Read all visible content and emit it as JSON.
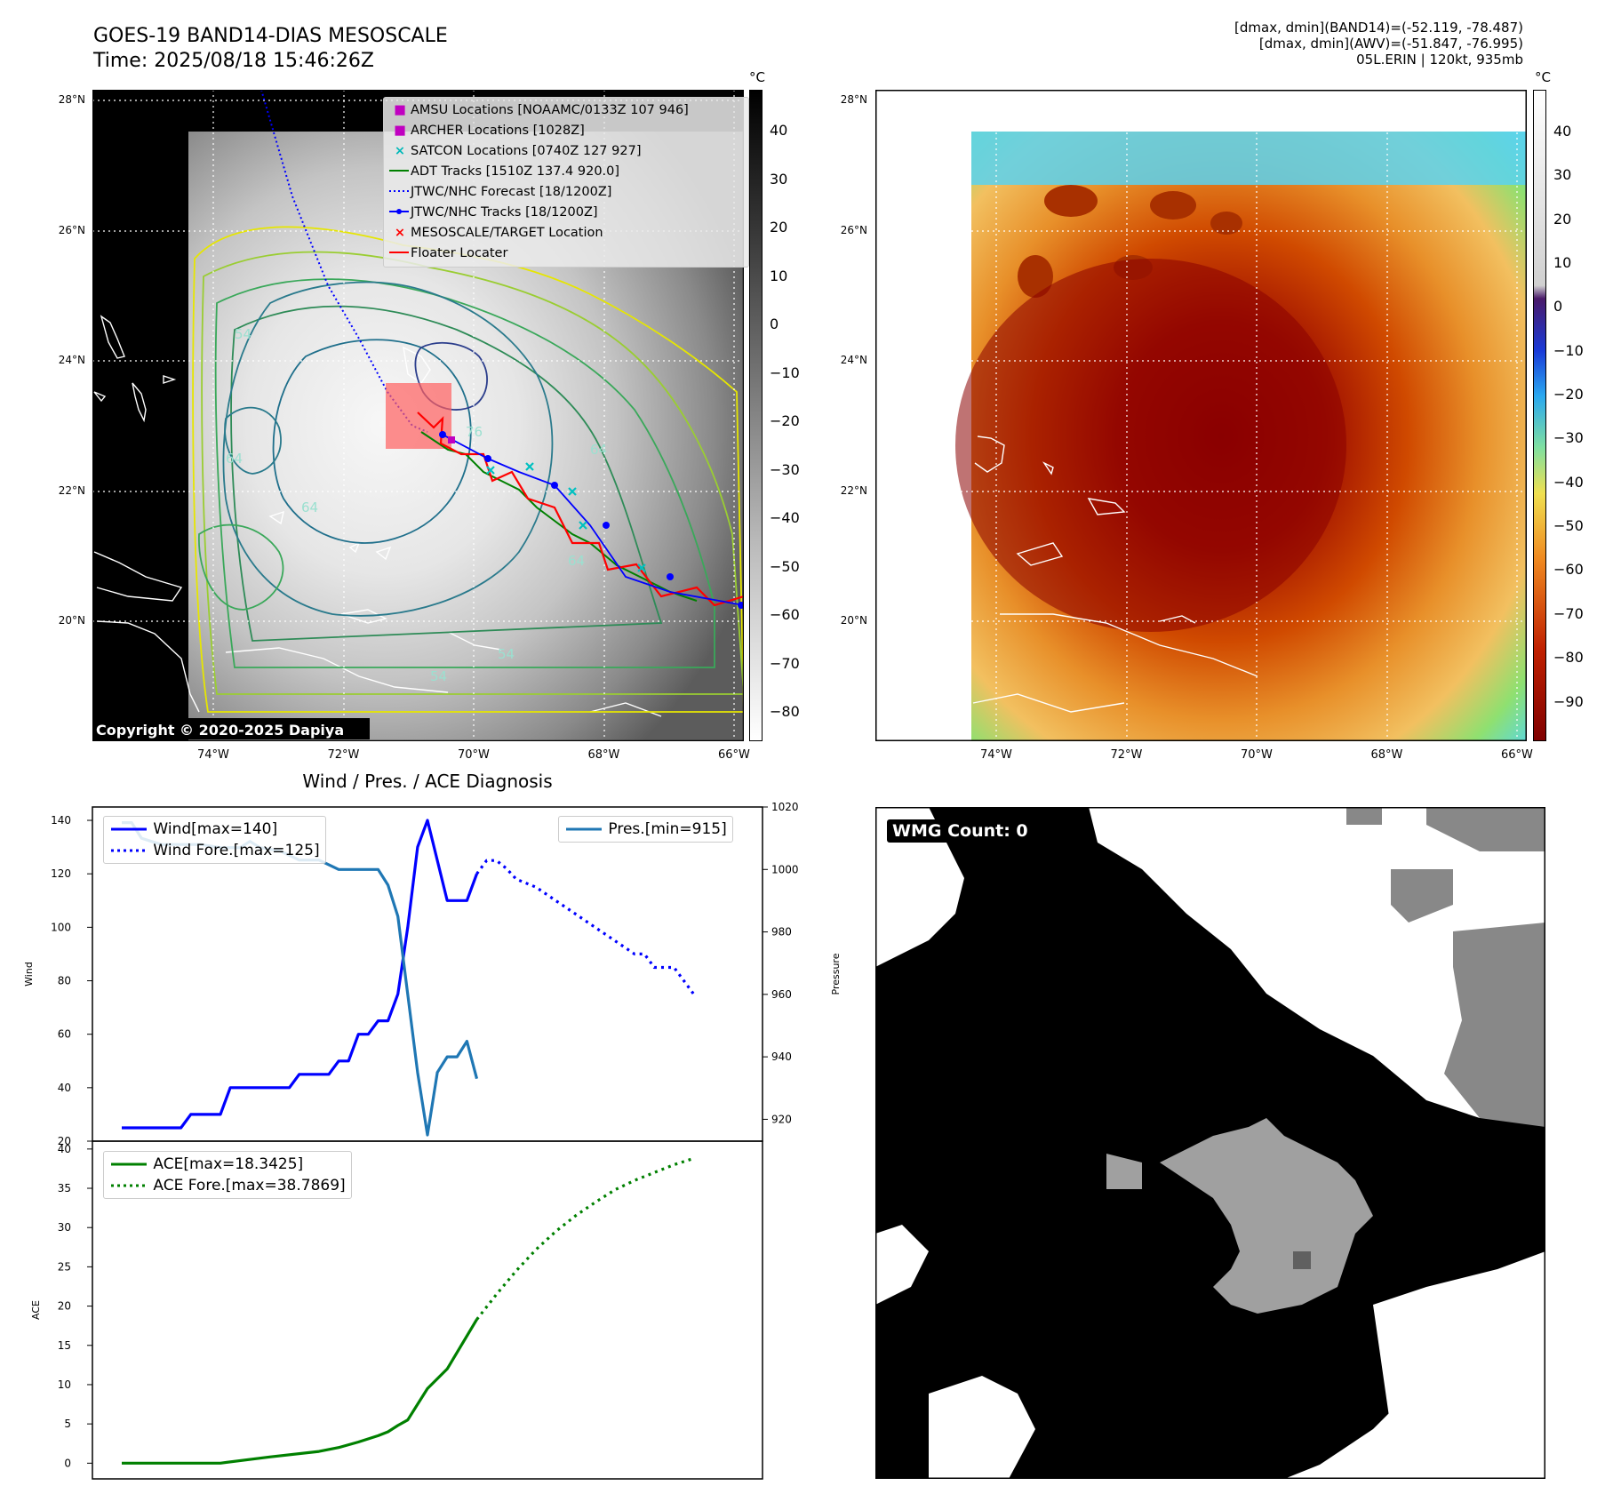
{
  "header": {
    "title": "GOES-19 BAND14-DIAS MESOSCALE",
    "time": "Time: 2025/08/18 15:46:26Z",
    "stats_band14": "[dmax, dmin](BAND14)=(-52.119, -78.487)",
    "stats_awv": "[dmax, dmin](AWV)=(-51.847, -76.995)",
    "storm": "05L.ERIN | 120kt, 935mb"
  },
  "map": {
    "lat_labels": [
      "28°N",
      "26°N",
      "24°N",
      "22°N",
      "20°N"
    ],
    "lat_values": [
      28,
      26,
      24,
      22,
      20
    ],
    "lon_labels": [
      "74°W",
      "72°W",
      "70°W",
      "68°W",
      "66°W"
    ],
    "lon_values": [
      -74,
      -72,
      -70,
      -68,
      -66
    ],
    "copyright": "Copyright © 2020-2025 Dapiya",
    "contour_labels": [
      "54",
      "64",
      "64",
      "64",
      "54",
      "54",
      "76",
      "64"
    ],
    "legend": [
      {
        "label": "AMSU Locations [NOAAMC/0133Z 107 946]",
        "symbol": "square",
        "color": "#c000c0"
      },
      {
        "label": "ARCHER Locations [1028Z]",
        "symbol": "square",
        "color": "#c000c0"
      },
      {
        "label": "SATCON Locations [0740Z 127 927]",
        "symbol": "x",
        "color": "#00b8b8"
      },
      {
        "label": "ADT Tracks [1510Z 137.4 920.0]",
        "symbol": "line",
        "color": "#008000"
      },
      {
        "label": "JTWC/NHC Forecast [18/1200Z]",
        "symbol": "dotted",
        "color": "#0000ff"
      },
      {
        "label": "JTWC/NHC Tracks [18/1200Z]",
        "symbol": "line-dot",
        "color": "#0000ff"
      },
      {
        "label": "MESOSCALE/TARGET Location",
        "symbol": "x",
        "color": "#ff0000"
      },
      {
        "label": "Floater Locater",
        "symbol": "line",
        "color": "#ff0000"
      }
    ]
  },
  "colorbar_gray": {
    "unit": "°C",
    "ticks": [
      "40",
      "30",
      "20",
      "10",
      "0",
      "−10",
      "−20",
      "−30",
      "−40",
      "−50",
      "−60",
      "−70",
      "−80"
    ],
    "tick_values": [
      40,
      30,
      20,
      10,
      0,
      -10,
      -20,
      -30,
      -40,
      -50,
      -60,
      -70,
      -80
    ]
  },
  "colorbar_color": {
    "unit": "°C",
    "ticks": [
      "40",
      "30",
      "20",
      "10",
      "0",
      "−10",
      "−20",
      "−30",
      "−40",
      "−50",
      "−60",
      "−70",
      "−80",
      "−90"
    ],
    "tick_values": [
      40,
      30,
      20,
      10,
      0,
      -10,
      -20,
      -30,
      -40,
      -50,
      -60,
      -70,
      -80,
      -90
    ]
  },
  "wmg": {
    "label": "WMG Count: 0"
  },
  "chart_data": [
    {
      "type": "line",
      "title": "Wind / Pres. / ACE Diagnosis",
      "ylabel": "Wind",
      "y2label": "Pressure",
      "ylim": [
        20,
        145
      ],
      "y2lim": [
        913,
        1020
      ],
      "y_ticks": [
        "20",
        "40",
        "60",
        "80",
        "100",
        "120",
        "140"
      ],
      "y2_ticks": [
        "920",
        "940",
        "960",
        "980",
        "1000",
        "1020"
      ],
      "legend_left": [
        {
          "label": "Wind[max=140]",
          "style": "solid",
          "color": "#0000ff"
        },
        {
          "label": "Wind Fore.[max=125]",
          "style": "dotted",
          "color": "#0000ff"
        }
      ],
      "legend_right": [
        {
          "label": "Pres.[min=915]",
          "style": "solid",
          "color": "#1f77b4"
        }
      ],
      "series": [
        {
          "name": "Wind",
          "axis": "left",
          "style": "solid",
          "color": "#0000ff",
          "x": [
            0,
            6,
            7,
            10,
            11,
            17,
            18,
            21,
            22,
            23,
            24,
            25,
            26,
            27,
            28,
            29,
            30,
            31,
            33,
            35,
            36
          ],
          "values": [
            25,
            25,
            30,
            30,
            40,
            40,
            45,
            45,
            50,
            50,
            60,
            60,
            65,
            65,
            75,
            100,
            130,
            140,
            110,
            110,
            120
          ]
        },
        {
          "name": "Wind Fore.",
          "axis": "left",
          "style": "dotted",
          "color": "#0000ff",
          "x": [
            36,
            37,
            38,
            39,
            40,
            42,
            44,
            46,
            48,
            50,
            52,
            53,
            54,
            56,
            57,
            58
          ],
          "values": [
            120,
            125,
            125,
            122,
            118,
            115,
            110,
            105,
            100,
            95,
            90,
            90,
            85,
            85,
            80,
            75
          ]
        },
        {
          "name": "Pres.",
          "axis": "right",
          "style": "solid",
          "color": "#1f77b4",
          "x": [
            0,
            1,
            2,
            3,
            4,
            6,
            8,
            10,
            12,
            13,
            14,
            16,
            18,
            20,
            22,
            23,
            24,
            26,
            27,
            28,
            29,
            30,
            31,
            32,
            33,
            34,
            35,
            36
          ],
          "values": [
            1015,
            1015,
            1010,
            1009,
            1008,
            1008,
            1008,
            1007,
            1007,
            1009,
            1007,
            1006,
            1003,
            1003,
            1000,
            1000,
            1000,
            1000,
            995,
            985,
            960,
            935,
            915,
            935,
            940,
            940,
            945,
            933
          ]
        }
      ]
    },
    {
      "type": "line",
      "ylabel": "ACE",
      "ylim": [
        -2,
        41
      ],
      "y_ticks": [
        "0",
        "5",
        "10",
        "15",
        "20",
        "25",
        "30",
        "35",
        "40"
      ],
      "legend": [
        {
          "label": "ACE[max=18.3425]",
          "style": "solid",
          "color": "#008000"
        },
        {
          "label": "ACE Fore.[max=38.7869]",
          "style": "dotted",
          "color": "#008000"
        }
      ],
      "series": [
        {
          "name": "ACE",
          "style": "solid",
          "color": "#008000",
          "x": [
            0,
            5,
            10,
            15,
            20,
            22,
            24,
            26,
            27,
            28,
            29,
            30,
            31,
            33,
            36
          ],
          "values": [
            0,
            0,
            0,
            0.8,
            1.5,
            2.0,
            2.7,
            3.5,
            4.0,
            4.8,
            5.5,
            7.5,
            9.5,
            12.0,
            18.3
          ]
        },
        {
          "name": "ACE Fore.",
          "style": "dotted",
          "color": "#008000",
          "x": [
            36,
            38,
            40,
            42,
            44,
            46,
            48,
            50,
            52,
            54,
            56,
            58
          ],
          "values": [
            18.3,
            21.5,
            24.5,
            27.2,
            29.5,
            31.5,
            33.2,
            34.8,
            36.0,
            37.0,
            38.0,
            38.8
          ]
        }
      ]
    }
  ]
}
